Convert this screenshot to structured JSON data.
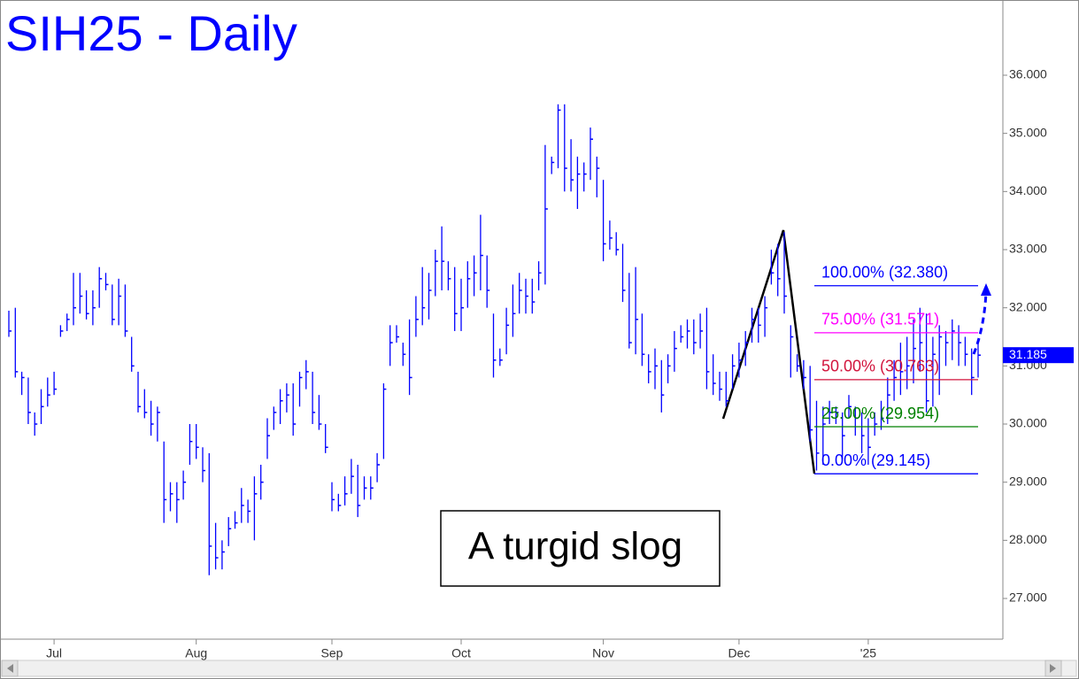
{
  "chart_data": {
    "type": "ohlc",
    "title": "SIH25 - Daily",
    "annotation": "A turgid slog",
    "color": "#0000ff",
    "categories": [
      null,
      null,
      null,
      null,
      null,
      null,
      null,
      "Jul",
      null,
      null,
      null,
      null,
      null,
      null,
      null,
      null,
      null,
      null,
      null,
      null,
      null,
      null,
      null,
      null,
      null,
      null,
      null,
      null,
      null,
      "Aug",
      null,
      null,
      null,
      null,
      null,
      null,
      null,
      null,
      null,
      null,
      null,
      null,
      null,
      null,
      null,
      null,
      null,
      null,
      null,
      null,
      "Sep",
      null,
      null,
      null,
      null,
      null,
      null,
      null,
      null,
      null,
      null,
      null,
      null,
      null,
      null,
      null,
      null,
      null,
      null,
      null,
      "Oct",
      null,
      null,
      null,
      null,
      null,
      null,
      null,
      null,
      null,
      null,
      null,
      null,
      null,
      null,
      null,
      null,
      null,
      null,
      null,
      null,
      null,
      "Nov",
      null,
      null,
      null,
      null,
      null,
      null,
      null,
      null,
      null,
      null,
      null,
      null,
      null,
      null,
      null,
      null,
      null,
      null,
      null,
      null,
      "Dec",
      null,
      null,
      null,
      null,
      null,
      null,
      null,
      null,
      null,
      null,
      null,
      null,
      null,
      null,
      null,
      null,
      null,
      null,
      null,
      "'25",
      null,
      null,
      null,
      null,
      null,
      null,
      null,
      null,
      null,
      null,
      null,
      null,
      null,
      null,
      null,
      null,
      null
    ],
    "high": [
      31.95,
      32.0,
      30.9,
      30.8,
      30.2,
      30.6,
      30.8,
      30.9,
      31.7,
      31.9,
      32.6,
      32.6,
      32.3,
      32.3,
      32.7,
      32.6,
      32.4,
      32.5,
      32.4,
      31.5,
      30.9,
      30.6,
      30.4,
      30.3,
      29.7,
      29.0,
      29.0,
      29.2,
      30.0,
      30.0,
      29.6,
      29.5,
      28.3,
      28.0,
      28.4,
      28.5,
      28.9,
      28.7,
      29.1,
      29.3,
      30.1,
      30.3,
      30.6,
      30.7,
      30.7,
      30.9,
      31.1,
      30.9,
      30.5,
      30.0,
      29.0,
      28.8,
      29.1,
      29.4,
      29.3,
      29.1,
      29.1,
      29.5,
      30.7,
      31.7,
      31.7,
      31.4,
      31.8,
      32.2,
      32.7,
      32.6,
      33.0,
      33.4,
      32.8,
      32.7,
      32.5,
      32.8,
      32.9,
      33.6,
      32.9,
      31.9,
      31.3,
      32.0,
      32.4,
      32.6,
      32.5,
      32.5,
      32.8,
      34.8,
      34.6,
      35.5,
      35.5,
      34.9,
      34.6,
      34.5,
      35.1,
      34.6,
      34.2,
      33.5,
      33.3,
      33.1,
      32.6,
      32.7,
      31.9,
      31.2,
      31.3,
      31.1,
      31.2,
      31.6,
      31.7,
      31.8,
      31.8,
      31.9,
      32.0,
      31.2,
      30.9,
      30.9,
      31.2,
      31.4,
      31.6,
      32.0,
      32.0,
      32.2,
      33.0,
      33.1,
      33.3,
      31.7,
      31.2,
      31.1,
      31.0,
      30.4,
      30.3,
      30.4,
      30.3,
      30.2,
      30.5,
      30.3,
      30.2,
      30.1,
      30.2,
      30.4,
      30.8,
      31.1,
      31.4,
      31.5,
      31.8,
      32.0,
      31.9,
      31.5,
      31.7,
      31.6,
      31.8,
      31.7,
      31.5,
      31.3,
      31.4
    ],
    "low": [
      31.5,
      30.8,
      30.5,
      30.0,
      29.8,
      30.0,
      30.3,
      30.5,
      31.5,
      31.6,
      31.7,
      31.9,
      31.8,
      31.7,
      32.0,
      32.3,
      31.7,
      31.7,
      31.5,
      30.9,
      30.2,
      30.1,
      29.8,
      29.7,
      28.3,
      28.5,
      28.3,
      28.7,
      29.3,
      29.4,
      29.0,
      27.4,
      27.5,
      27.5,
      27.9,
      28.2,
      28.3,
      28.3,
      28.0,
      28.7,
      29.4,
      29.9,
      30.0,
      30.2,
      29.8,
      30.3,
      30.6,
      30.0,
      29.9,
      29.5,
      28.5,
      28.5,
      28.6,
      28.8,
      28.4,
      28.7,
      28.7,
      29.0,
      29.4,
      31.0,
      31.4,
      31.0,
      30.5,
      31.5,
      31.7,
      31.8,
      32.2,
      32.3,
      32.3,
      31.6,
      31.6,
      32.0,
      32.2,
      32.3,
      32.0,
      30.8,
      31.0,
      31.2,
      31.5,
      31.9,
      31.9,
      31.9,
      32.3,
      32.4,
      34.3,
      34.4,
      34.0,
      34.0,
      33.7,
      34.0,
      34.2,
      33.9,
      32.8,
      33.0,
      32.9,
      32.1,
      31.3,
      31.2,
      31.0,
      30.7,
      30.6,
      30.2,
      30.7,
      30.9,
      31.4,
      31.3,
      31.2,
      31.3,
      30.6,
      30.5,
      30.4,
      30.3,
      30.6,
      30.8,
      31.0,
      31.4,
      31.4,
      31.5,
      32.4,
      32.2,
      31.9,
      30.8,
      30.9,
      30.6,
      29.7,
      29.2,
      29.3,
      30.0,
      30.0,
      29.4,
      30.1,
      29.8,
      29.5,
      29.3,
      29.8,
      29.9,
      30.0,
      30.4,
      30.5,
      30.6,
      30.7,
      30.9,
      30.2,
      30.3,
      30.5,
      31.0,
      31.1,
      31.0,
      31.0,
      30.5,
      30.8
    ],
    "close": [
      31.6,
      30.9,
      30.8,
      30.2,
      30.0,
      30.3,
      30.5,
      30.6,
      31.6,
      31.8,
      32.0,
      32.2,
      31.9,
      32.0,
      32.5,
      32.4,
      31.8,
      32.2,
      31.6,
      31.0,
      30.3,
      30.2,
      30.0,
      30.2,
      28.7,
      28.8,
      28.7,
      29.0,
      29.7,
      29.6,
      29.2,
      27.9,
      27.7,
      27.8,
      28.2,
      28.3,
      28.6,
      28.5,
      28.8,
      29.0,
      29.8,
      30.2,
      30.4,
      30.5,
      30.0,
      30.8,
      30.9,
      30.2,
      30.0,
      29.6,
      28.7,
      28.6,
      28.8,
      29.1,
      28.6,
      28.9,
      28.9,
      29.3,
      30.6,
      31.4,
      31.5,
      31.2,
      30.8,
      31.8,
      32.0,
      32.3,
      32.8,
      32.8,
      32.5,
      31.9,
      32.0,
      32.5,
      32.6,
      32.9,
      32.3,
      31.1,
      31.1,
      31.7,
      31.9,
      32.3,
      32.2,
      32.1,
      32.6,
      33.7,
      34.5,
      35.4,
      34.4,
      34.2,
      34.3,
      34.3,
      34.9,
      34.4,
      33.1,
      33.2,
      33.0,
      32.3,
      31.4,
      31.8,
      31.2,
      30.9,
      31.0,
      30.5,
      31.0,
      31.3,
      31.5,
      31.6,
      31.4,
      31.6,
      30.9,
      30.7,
      30.6,
      30.4,
      31.0,
      31.1,
      31.4,
      31.8,
      31.7,
      32.0,
      32.6,
      32.5,
      32.2,
      31.5,
      31.0,
      30.8,
      29.9,
      29.5,
      30.0,
      30.2,
      30.2,
      29.8,
      30.3,
      30.1,
      29.8,
      29.6,
      30.0,
      30.1,
      30.5,
      30.8,
      30.9,
      31.0,
      31.3,
      31.4,
      30.4,
      31.2,
      31.5,
      31.4,
      31.6,
      31.4,
      31.2,
      30.8,
      31.185
    ],
    "last_price": 31.185,
    "levels": [
      {
        "label": "100.00% (32.380)",
        "value": 32.38,
        "color": "#0000ff"
      },
      {
        "label": "75.00% (31.571)",
        "value": 31.571,
        "color": "#ff00ff"
      },
      {
        "label": "50.00% (30.763)",
        "value": 30.763,
        "color": "#d2143c"
      },
      {
        "label": "25.00% (29.954)",
        "value": 29.954,
        "color": "#008000"
      },
      {
        "label": "0.00% (29.145)",
        "value": 29.145,
        "color": "#0000ff"
      }
    ],
    "ylim": [
      26.3,
      37.294
    ],
    "yticks": [
      {
        "value": 27,
        "label": "27.000"
      },
      {
        "value": 28,
        "label": "28.000"
      },
      {
        "value": 29,
        "label": "29.000"
      },
      {
        "value": 30,
        "label": "30.000"
      },
      {
        "value": 31,
        "label": "31.000"
      },
      {
        "value": 32,
        "label": "32.000"
      },
      {
        "value": 33,
        "label": "33.000"
      },
      {
        "value": 34,
        "label": "34.000"
      },
      {
        "value": 35,
        "label": "35.000"
      },
      {
        "value": 36,
        "label": "36.000"
      }
    ]
  }
}
